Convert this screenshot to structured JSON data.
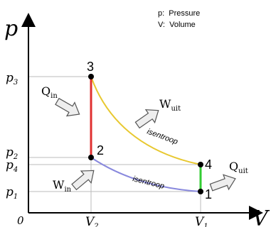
{
  "axes": {
    "y_label": "p",
    "x_label": "V",
    "origin_label": "0"
  },
  "legend": {
    "line1": "p:  Pressure",
    "line2": "V:  Volume"
  },
  "ticks": {
    "p3": "p",
    "p3_sub": "3",
    "p2": "p",
    "p2_sub": "2",
    "p4": "p",
    "p4_sub": "4",
    "p1": "p",
    "p1_sub": "1",
    "v1": "V",
    "v1_sub": "1",
    "v2": "V",
    "v2_sub": "2"
  },
  "points": {
    "pt1": "1",
    "pt2": "2",
    "pt3": "3",
    "pt4": "4"
  },
  "annotations": {
    "q_in": "Q",
    "q_in_sub": "in",
    "q_out": "Q",
    "q_out_sub": "uit",
    "w_in": "W",
    "w_in_sub": "in",
    "w_out": "W",
    "w_out_sub": "uit",
    "isentroop_upper": "isentroop",
    "isentroop_lower": "isentroop"
  },
  "colors": {
    "heat_in_line": "#e03030",
    "heat_out_line": "#33cc33",
    "expansion_curve": "#e8c830",
    "compression_curve": "#8888dd",
    "guide_lines": "#bbbbbb"
  }
}
